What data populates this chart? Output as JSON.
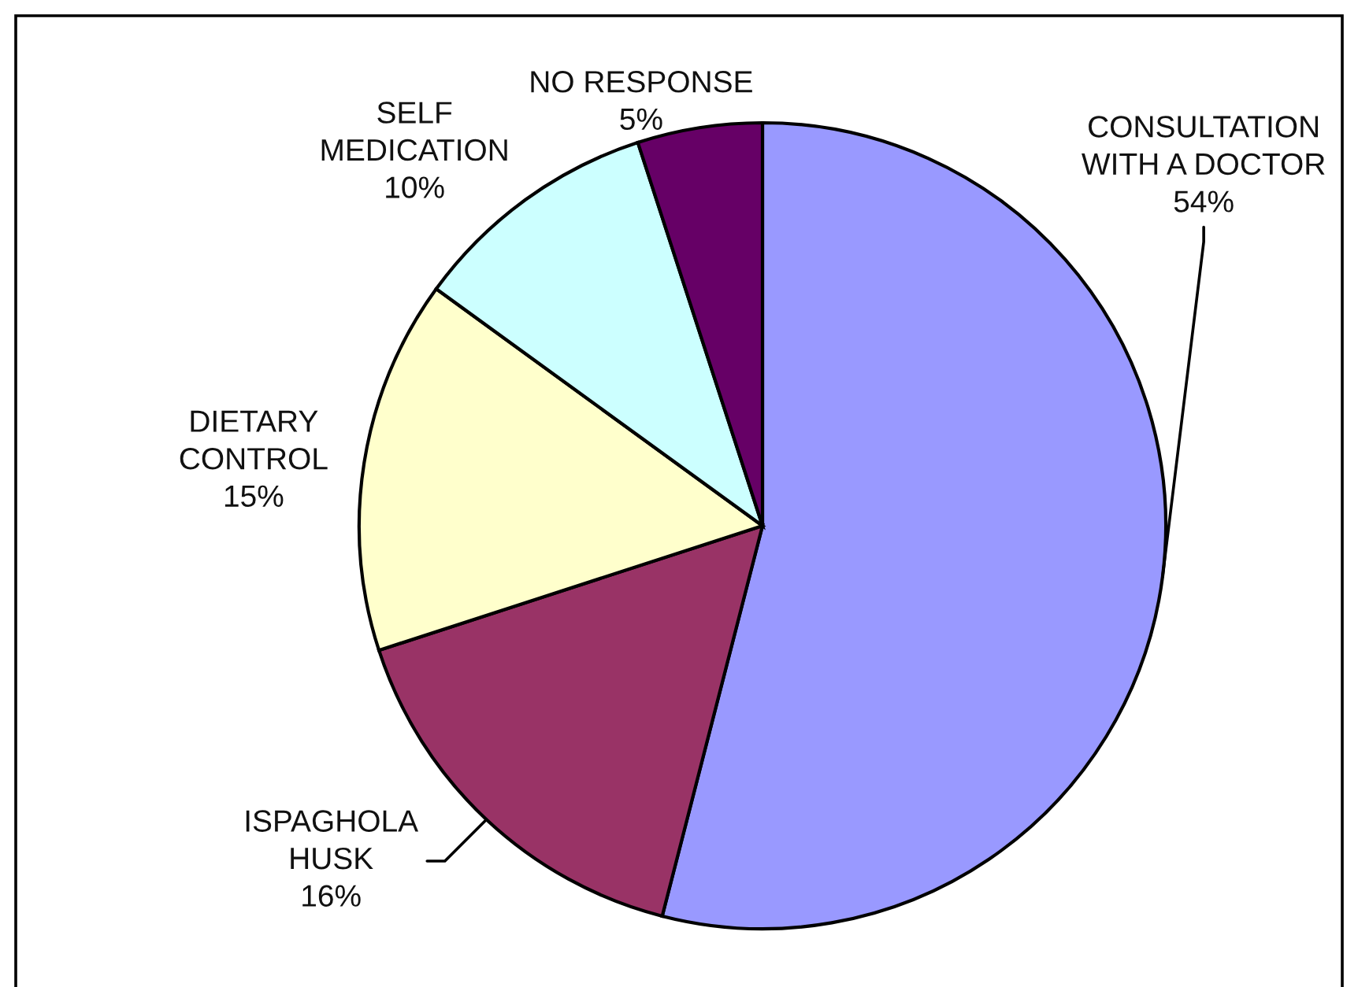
{
  "chart_data": {
    "type": "pie",
    "categories": [
      "CONSULTATION\nWITH A DOCTOR",
      "ISPAGHOLA\nHUSK",
      "DIETARY\nCONTROL",
      "SELF\nMEDICATION",
      "NO RESPONSE"
    ],
    "values": [
      54,
      16,
      15,
      10,
      5
    ],
    "colors": [
      "#9999ff",
      "#993366",
      "#ffffcc",
      "#ccffff",
      "#660066"
    ],
    "value_labels": [
      "54%",
      "16%",
      "15%",
      "10%",
      "5%"
    ]
  }
}
